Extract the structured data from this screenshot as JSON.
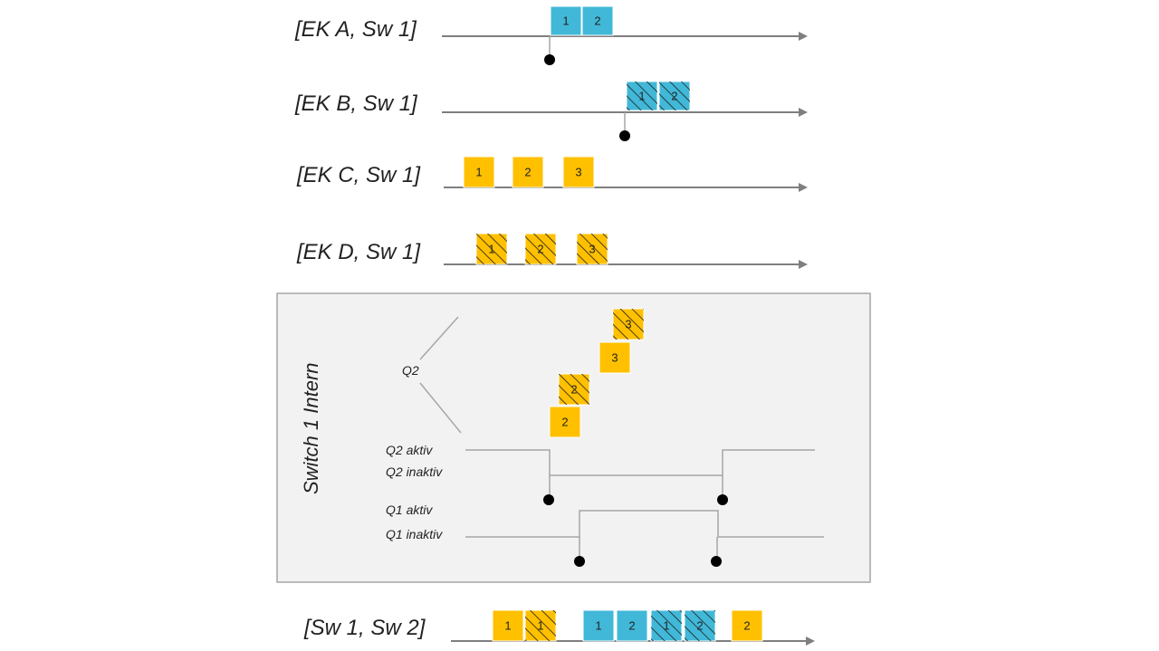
{
  "rows": [
    {
      "label": "[EK A, Sw 1]"
    },
    {
      "label": "[EK B, Sw 1]"
    },
    {
      "label": "[EK C, Sw 1]"
    },
    {
      "label": "[EK D, Sw 1]"
    },
    {
      "label": "[Sw 1, Sw 2]"
    }
  ],
  "switch_panel": {
    "title": "Switch 1 Intern",
    "queue_label": "Q2",
    "q2_active": "Q2 aktiv",
    "q2_inactive": "Q2 inaktiv",
    "q1_active": "Q1 aktiv",
    "q1_inactive": "Q1 inaktiv"
  },
  "colors": {
    "blue": "#41b8d8",
    "orange": "#ffc000",
    "hatch": "#1f1f1f",
    "axis": "#7f7f7f",
    "panel_border": "#a6a6a6",
    "panel_fill": "#f2f2f2"
  },
  "boxes": {
    "row_a": [
      {
        "num": "1",
        "color": "blue",
        "hatched": false
      },
      {
        "num": "2",
        "color": "blue",
        "hatched": false
      }
    ],
    "row_b": [
      {
        "num": "1",
        "color": "blue",
        "hatched": true
      },
      {
        "num": "2",
        "color": "blue",
        "hatched": true
      }
    ],
    "row_c": [
      {
        "num": "1",
        "color": "orange",
        "hatched": false
      },
      {
        "num": "2",
        "color": "orange",
        "hatched": false
      },
      {
        "num": "3",
        "color": "orange",
        "hatched": false
      }
    ],
    "row_d": [
      {
        "num": "1",
        "color": "orange",
        "hatched": true
      },
      {
        "num": "2",
        "color": "orange",
        "hatched": true
      },
      {
        "num": "3",
        "color": "orange",
        "hatched": true
      }
    ],
    "queue": [
      {
        "num": "3",
        "color": "orange",
        "hatched": true
      },
      {
        "num": "3",
        "color": "orange",
        "hatched": false
      },
      {
        "num": "2",
        "color": "orange",
        "hatched": true
      },
      {
        "num": "2",
        "color": "orange",
        "hatched": false
      }
    ],
    "output": [
      {
        "num": "1",
        "color": "orange",
        "hatched": false
      },
      {
        "num": "1",
        "color": "orange",
        "hatched": true
      },
      {
        "num": "1",
        "color": "blue",
        "hatched": false
      },
      {
        "num": "2",
        "color": "blue",
        "hatched": false
      },
      {
        "num": "1",
        "color": "blue",
        "hatched": true
      },
      {
        "num": "2",
        "color": "blue",
        "hatched": true
      },
      {
        "num": "2",
        "color": "orange",
        "hatched": false
      }
    ]
  }
}
